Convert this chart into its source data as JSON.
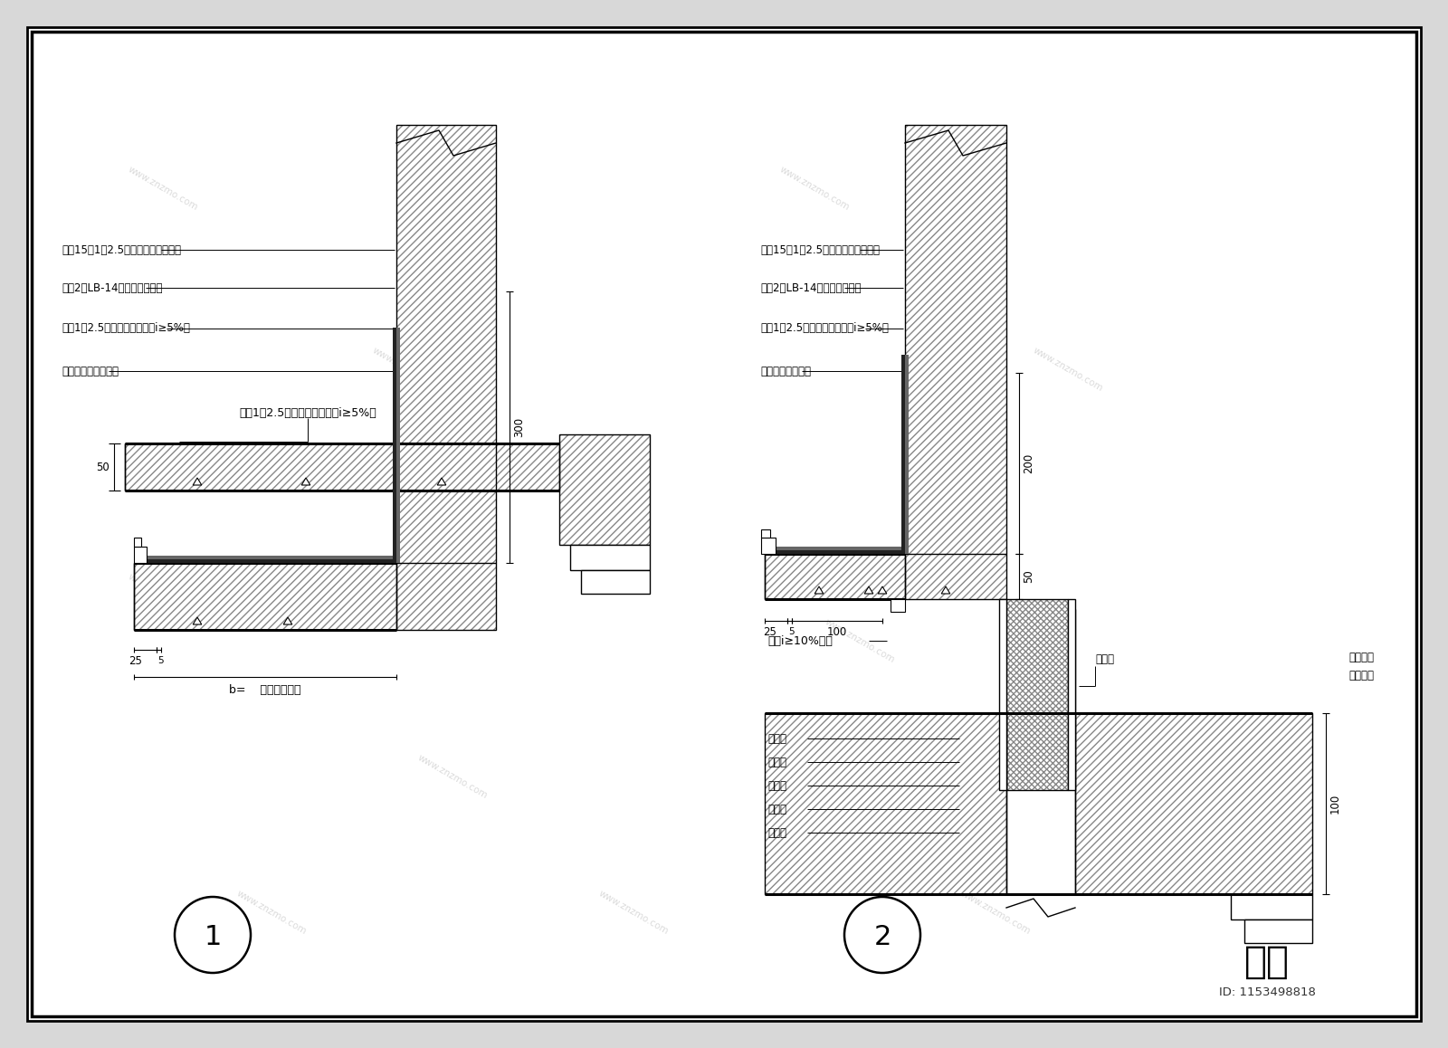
{
  "bg_color": "#e8e8e8",
  "line_color": "#000000",
  "left_labels": [
    "批抹15厚1：2.5钢网水泥砂浆保护层",
    "涂抹2厚LB-14弹性水泥防水层",
    "批抹1：2.5水泥砂浆找平层（i≥5%）",
    "钢筋混凝土结构顶板"
  ],
  "right_labels": [
    "批抹15厚1：2.5钢网水泥砂浆保护层",
    "涂抹2厚LB-14弹性水泥防水层",
    "批抹1：2.5水泥砂浆找平层（i≥5%）",
    "预制素混凝土挑板"
  ],
  "label1_bottom": "批抹1：2.5水泥砂浆散水面（i≥5%）",
  "label_slope": "按设i≥10%坡度",
  "label_vent1": "排气扇",
  "label_vent2": "排气扇边",
  "label_vent3": "嵌填发泡",
  "label_mianzhan": "罩面剂",
  "label_shmianzhuang": "饰面砖",
  "label_fangshui": "防水层",
  "label_zhaoping": "找平层",
  "label_zhuang": "砖墙体",
  "dim_300": "300",
  "dim_200": "200",
  "dim_50": "50",
  "dim_25": "25",
  "dim_5": "5",
  "dim_100": "100",
  "dim_b": "b=    （按设计定）",
  "circle1": "1",
  "circle2": "2",
  "logo_text": "知末",
  "id_text": "ID: 1153498818",
  "watermark": "www.znzmo.com"
}
